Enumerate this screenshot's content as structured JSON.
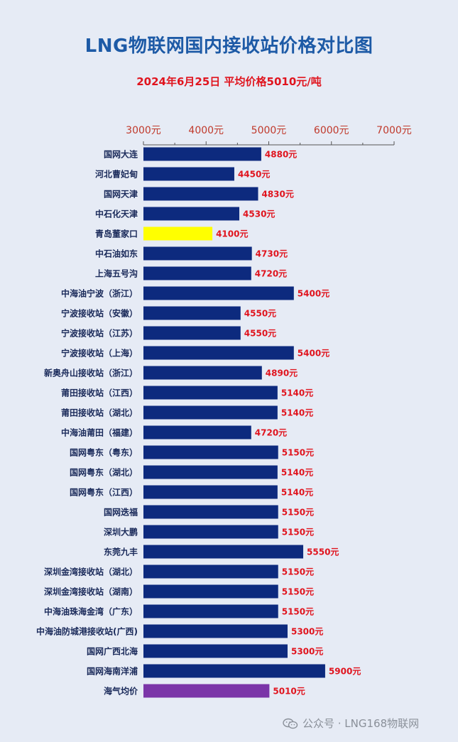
{
  "chart_data": {
    "type": "bar",
    "orientation": "horizontal",
    "title": "LNG物联网国内接收站价格对比图",
    "subtitle": "2024年6月25日 平均价格5010元/吨",
    "xlim": [
      3000,
      7000
    ],
    "x_ticks": [
      3000,
      4000,
      5000,
      6000,
      7000
    ],
    "x_tick_labels": [
      "3000元",
      "4000元",
      "5000元",
      "6000元",
      "7000元"
    ],
    "categories": [
      "国网大连",
      "河北曹妃甸",
      "国网天津",
      "中石化天津",
      "青岛董家口",
      "中石油如东",
      "上海五号沟",
      "中海油宁波（浙江）",
      "宁波接收站（安徽）",
      "宁波接收站（江苏）",
      "宁波接收站（上海）",
      "新奥舟山接收站（浙江）",
      "莆田接收站（江西）",
      "莆田接收站（湖北）",
      "中海油莆田（福建）",
      "国网粤东（粤东）",
      "国网粤东（湖北）",
      "国网粤东（江西）",
      "国网迭福",
      "深圳大鹏",
      "东莞九丰",
      "深圳金湾接收站（湖北）",
      "深圳金湾接收站（湖南）",
      "中海油珠海金湾（广东）",
      "中海油防城港接收站(广西)",
      "国网广西北海",
      "国网海南洋浦",
      "海气均价"
    ],
    "values": [
      4880,
      4450,
      4830,
      4530,
      4100,
      4730,
      4720,
      5400,
      4550,
      4550,
      5400,
      4890,
      5140,
      5140,
      4720,
      5150,
      5140,
      5140,
      5150,
      5150,
      5550,
      5150,
      5150,
      5150,
      5300,
      5300,
      5900,
      5010
    ],
    "value_labels": [
      "4880元",
      "4450元",
      "4830元",
      "4530元",
      "4100元",
      "4730元",
      "4720元",
      "5400元",
      "4550元",
      "4550元",
      "5400元",
      "4890元",
      "5140元",
      "5140元",
      "4720元",
      "5150元",
      "5140元",
      "5140元",
      "5150元",
      "5150元",
      "5550元",
      "5150元",
      "5150元",
      "5150元",
      "5300元",
      "5300元",
      "5900元",
      "5010元"
    ],
    "colors": {
      "default_bar": "#0d2a7e",
      "highlight_min": "#ffff00",
      "average_bar": "#7b35a8",
      "value_label": "#e0141e",
      "tick_label": "#c0392b",
      "category_label": "#1a2a5a",
      "axis": "#555555"
    },
    "highlight_index": 4,
    "average_index": 27,
    "grid": false,
    "legend": "none"
  },
  "watermark": {
    "icon": "wechat-icon",
    "text": "公众号 · LNG168物联网"
  }
}
